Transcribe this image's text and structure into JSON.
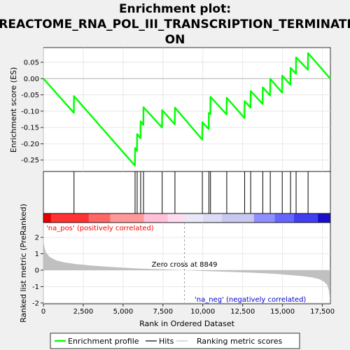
{
  "chart_data": {
    "type": "line",
    "title_lines": [
      "Enrichment plot:",
      "REACTOME_RNA_POL_III_TRANSCRIPTION_TERMINATI",
      "ON"
    ],
    "xlabel": "Rank in Ordered Dataset",
    "es_ylabel": "Enrichment score (ES)",
    "metric_ylabel": "Ranked list metric (PreRanked)",
    "xlim": [
      0,
      18000
    ],
    "x_ticks": [
      0,
      2500,
      5000,
      7500,
      10000,
      12500,
      15000,
      17500
    ],
    "x_tick_labels": [
      "0",
      "2,500",
      "5,000",
      "7,500",
      "10,000",
      "12,500",
      "15,000",
      "17,500"
    ],
    "es_ylim": [
      -0.285,
      0.095
    ],
    "es_ticks": [
      0.05,
      0.0,
      -0.05,
      -0.1,
      -0.15,
      -0.2,
      -0.25
    ],
    "es_tick_labels": [
      "0.05",
      "0.00",
      "-0.05",
      "-0.10",
      "-0.15",
      "-0.20",
      "-0.25"
    ],
    "metric_ylim": [
      -2.05,
      2.9
    ],
    "metric_ticks": [
      2,
      1,
      0,
      -1,
      -2
    ],
    "metric_tick_labels": [
      "2",
      "1",
      "0",
      "-1",
      "-2"
    ],
    "hits": [
      1920,
      5750,
      5880,
      6100,
      6280,
      7450,
      8250,
      9970,
      10380,
      10480,
      11500,
      12620,
      13000,
      13760,
      14230,
      14980,
      15500,
      15850,
      16600
    ],
    "es_curve": {
      "x": [
        0,
        1910,
        1920,
        5740,
        5750,
        5870,
        5880,
        6090,
        6100,
        6270,
        6280,
        7440,
        7450,
        8240,
        8250,
        9960,
        9970,
        10370,
        10380,
        10470,
        10480,
        11490,
        11500,
        12610,
        12620,
        12990,
        13000,
        13750,
        13760,
        14220,
        14230,
        14970,
        14980,
        15490,
        15500,
        15840,
        15850,
        16590,
        16600,
        17990
      ],
      "y": [
        0.0,
        -0.105,
        -0.054,
        -0.267,
        -0.213,
        -0.222,
        -0.17,
        -0.183,
        -0.131,
        -0.142,
        -0.088,
        -0.15,
        -0.097,
        -0.14,
        -0.089,
        -0.187,
        -0.134,
        -0.155,
        -0.105,
        -0.109,
        -0.056,
        -0.11,
        -0.059,
        -0.121,
        -0.069,
        -0.089,
        -0.038,
        -0.078,
        -0.027,
        -0.052,
        -0.001,
        -0.043,
        0.009,
        -0.019,
        0.033,
        0.015,
        0.065,
        0.027,
        0.078,
        0.0
      ]
    },
    "metric_profile": {
      "x": [
        0,
        150,
        400,
        800,
        1300,
        2000,
        3000,
        4500,
        6000,
        7500,
        8849,
        10000,
        11500,
        13000,
        14500,
        15500,
        16300,
        16900,
        17300,
        17600,
        17800,
        17900,
        17990
      ],
      "y": [
        1.7,
        1.1,
        0.8,
        0.6,
        0.48,
        0.38,
        0.28,
        0.18,
        0.1,
        0.05,
        0.0,
        -0.05,
        -0.1,
        -0.15,
        -0.22,
        -0.3,
        -0.37,
        -0.45,
        -0.55,
        -0.7,
        -0.9,
        -1.2,
        -1.85
      ]
    },
    "zero_cross_rank": 8849,
    "zero_cross_label": "Zero cross at 8849",
    "pos_label": "'na_pos' (positively correlated)",
    "neg_label": "'na_neg' (negatively correlated)",
    "colors": {
      "es_line": "#00ff00",
      "hits": "#000000",
      "metric_fill": "#c0c0c0",
      "pos_text": "#ff0000",
      "neg_text": "#0000cc",
      "zero_line": "#a0a0a0"
    },
    "color_bar": [
      {
        "from": 0,
        "to": 480,
        "color": "#e60000"
      },
      {
        "from": 480,
        "to": 2850,
        "color": "#ff3333"
      },
      {
        "from": 2850,
        "to": 4200,
        "color": "#ff6666"
      },
      {
        "from": 4200,
        "to": 6300,
        "color": "#ff9999"
      },
      {
        "from": 6300,
        "to": 7800,
        "color": "#ffc0d8"
      },
      {
        "from": 7800,
        "to": 8850,
        "color": "#ffdcf0"
      },
      {
        "from": 8850,
        "to": 10000,
        "color": "#e8e8f8"
      },
      {
        "from": 10000,
        "to": 11200,
        "color": "#dcdcf4"
      },
      {
        "from": 11200,
        "to": 13200,
        "color": "#c8c8f0"
      },
      {
        "from": 13200,
        "to": 14500,
        "color": "#8f8fff"
      },
      {
        "from": 14500,
        "to": 15700,
        "color": "#6666ff"
      },
      {
        "from": 15700,
        "to": 17200,
        "color": "#4040f0"
      },
      {
        "from": 17200,
        "to": 18000,
        "color": "#1a10cc"
      }
    ],
    "legend": [
      {
        "label": "Enrichment profile",
        "kind": "line",
        "color": "#00ff00"
      },
      {
        "label": "Hits",
        "kind": "line",
        "color": "#000000"
      },
      {
        "label": "Ranking metric scores",
        "kind": "line",
        "color": "#c0c0c0"
      }
    ]
  }
}
